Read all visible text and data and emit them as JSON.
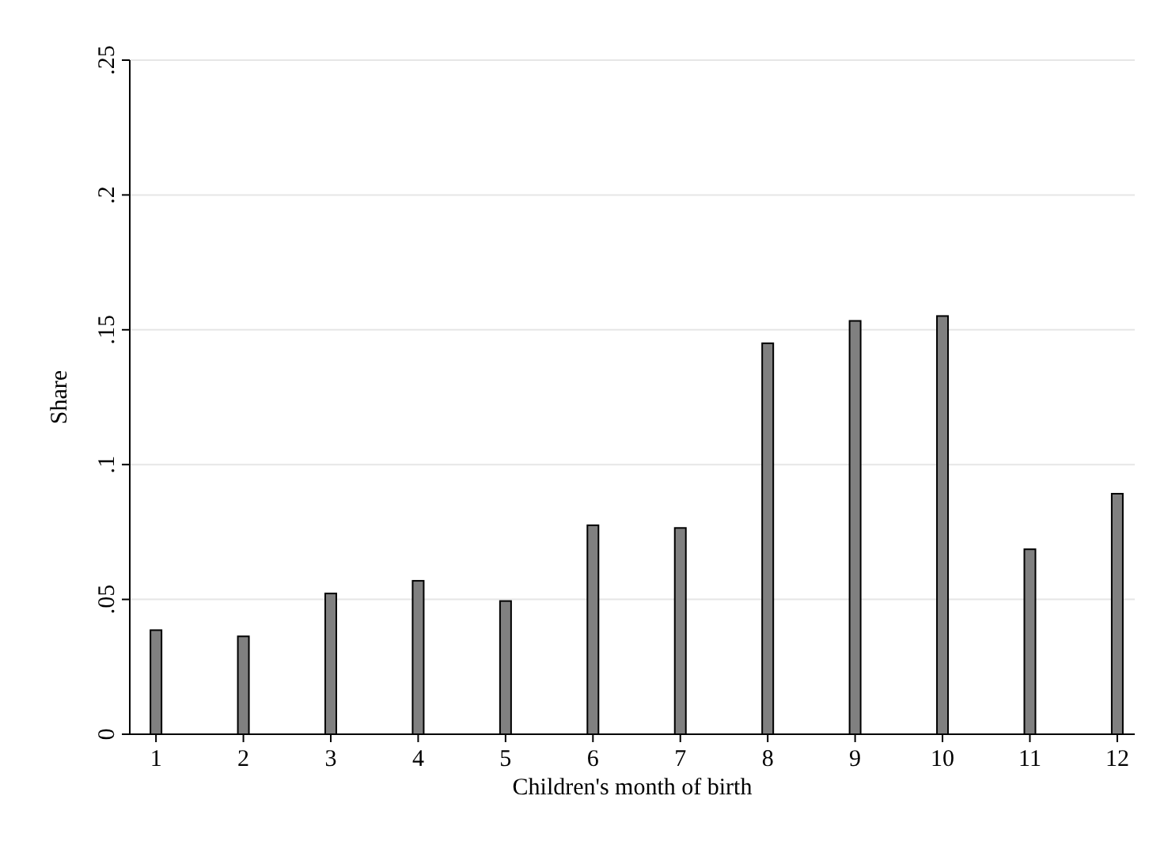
{
  "chart_data": {
    "type": "bar",
    "xlabel": "Children's month of birth",
    "ylabel": "Share",
    "x": [
      1,
      2,
      3,
      4,
      5,
      6,
      7,
      8,
      9,
      10,
      11,
      12
    ],
    "values": [
      0.0386,
      0.0363,
      0.0522,
      0.0569,
      0.0494,
      0.0775,
      0.0765,
      0.145,
      0.1533,
      0.1551,
      0.0686,
      0.0892
    ],
    "color": "#808080",
    "xlim": [
      0.7,
      12.2
    ],
    "xticks": [
      1,
      2,
      3,
      4,
      5,
      6,
      7,
      8,
      9,
      10,
      11,
      12
    ],
    "ylim": [
      0,
      0.25
    ],
    "yticks": [
      {
        "value": 0,
        "label": "0"
      },
      {
        "value": 0.05,
        "label": ".05"
      },
      {
        "value": 0.1,
        "label": ".1"
      },
      {
        "value": 0.15,
        "label": ".15"
      },
      {
        "value": 0.2,
        "label": ".2"
      },
      {
        "value": 0.25,
        "label": ".25"
      }
    ],
    "grid": "y"
  }
}
